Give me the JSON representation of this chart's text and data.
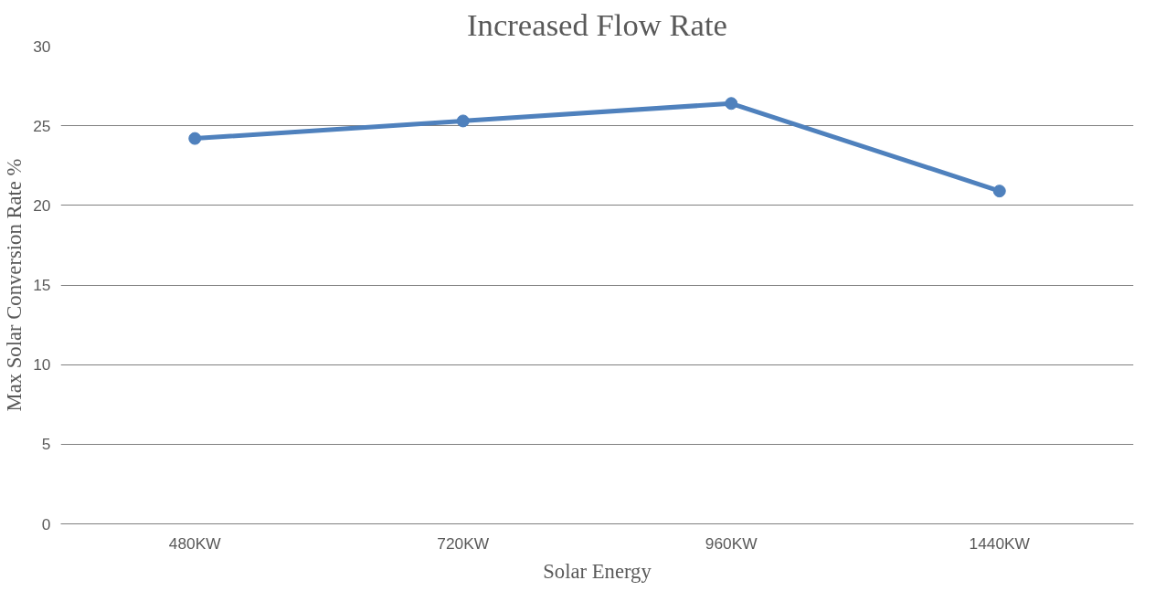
{
  "chart_data": {
    "type": "line",
    "title": "Increased Flow Rate",
    "xlabel": "Solar Energy",
    "ylabel": "Max Solar Conversion Rate %",
    "categories": [
      "480KW",
      "720KW",
      "960KW",
      "1440KW"
    ],
    "series": [
      {
        "color": "#4f81bd",
        "values": [
          24.2,
          25.3,
          26.4,
          20.9
        ]
      }
    ],
    "ylim": [
      0,
      30
    ],
    "yticks": [
      0,
      5,
      10,
      15,
      20,
      25,
      30
    ],
    "grid": "y",
    "marker": "circle",
    "line_style": "solid"
  }
}
